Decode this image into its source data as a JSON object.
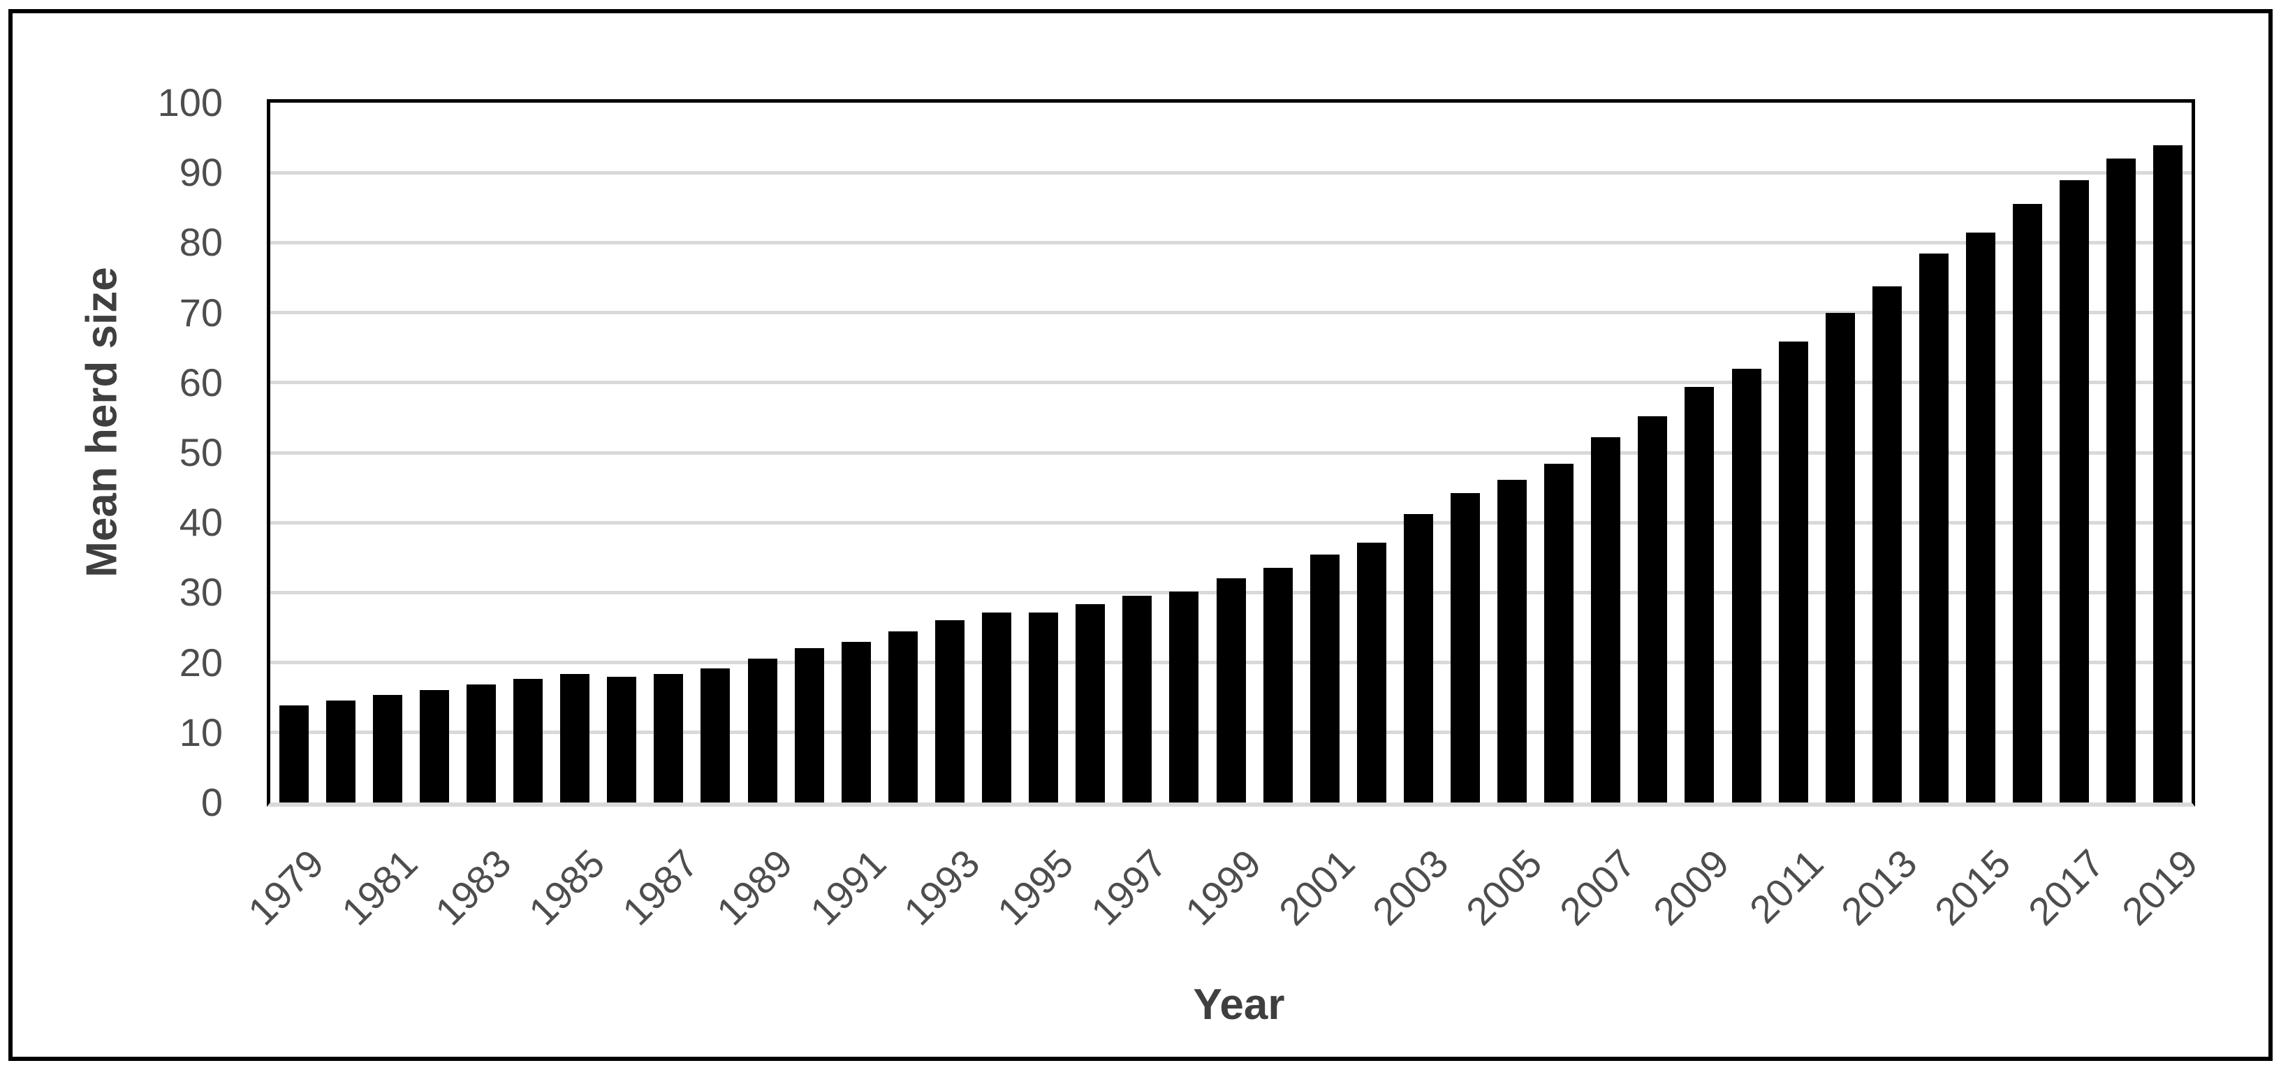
{
  "frame": {
    "border_color": "#000000",
    "background": "#ffffff"
  },
  "chart_data": {
    "type": "bar",
    "title": "",
    "xlabel": "Year",
    "ylabel": "Mean herd size",
    "ylim": [
      0,
      100
    ],
    "ytick_step": 10,
    "y_tick_labels": [
      "0",
      "10",
      "20",
      "30",
      "40",
      "50",
      "60",
      "70",
      "80",
      "90",
      "100"
    ],
    "x_tick_labels": [
      "1979",
      "1981",
      "1983",
      "1985",
      "1987",
      "1989",
      "1991",
      "1993",
      "1995",
      "1997",
      "1999",
      "2001",
      "2003",
      "2005",
      "2007",
      "2009",
      "2011",
      "2013",
      "2015",
      "2017",
      "2019"
    ],
    "x_tick_label_every": 2,
    "categories": [
      1979,
      1980,
      1981,
      1982,
      1983,
      1984,
      1985,
      1986,
      1987,
      1988,
      1989,
      1990,
      1991,
      1992,
      1993,
      1994,
      1995,
      1996,
      1997,
      1998,
      1999,
      2000,
      2001,
      2002,
      2003,
      2004,
      2005,
      2006,
      2007,
      2008,
      2009,
      2010,
      2011,
      2012,
      2013,
      2014,
      2015,
      2016,
      2017,
      2018,
      2019
    ],
    "values": [
      13.9,
      14.6,
      15.4,
      16.1,
      16.9,
      17.7,
      18.4,
      18.0,
      18.4,
      19.2,
      20.6,
      22.1,
      23.0,
      24.5,
      26.0,
      27.1,
      27.1,
      28.3,
      29.5,
      30.1,
      32.0,
      33.5,
      35.4,
      37.1,
      41.2,
      44.2,
      46.1,
      48.4,
      52.2,
      55.2,
      59.4,
      62.0,
      65.9,
      70.0,
      73.8,
      78.4,
      81.4,
      85.5,
      88.9,
      92.0,
      93.9
    ],
    "grid": true,
    "legend": false,
    "bar_color": "#000000",
    "gridline_color": "#d9d9d9",
    "zero_line_color": "#d9d9d9",
    "axis_line_color": "#000000",
    "tick_label_color": "#4d4d4d",
    "axis_title_color": "#3f3f3f"
  }
}
